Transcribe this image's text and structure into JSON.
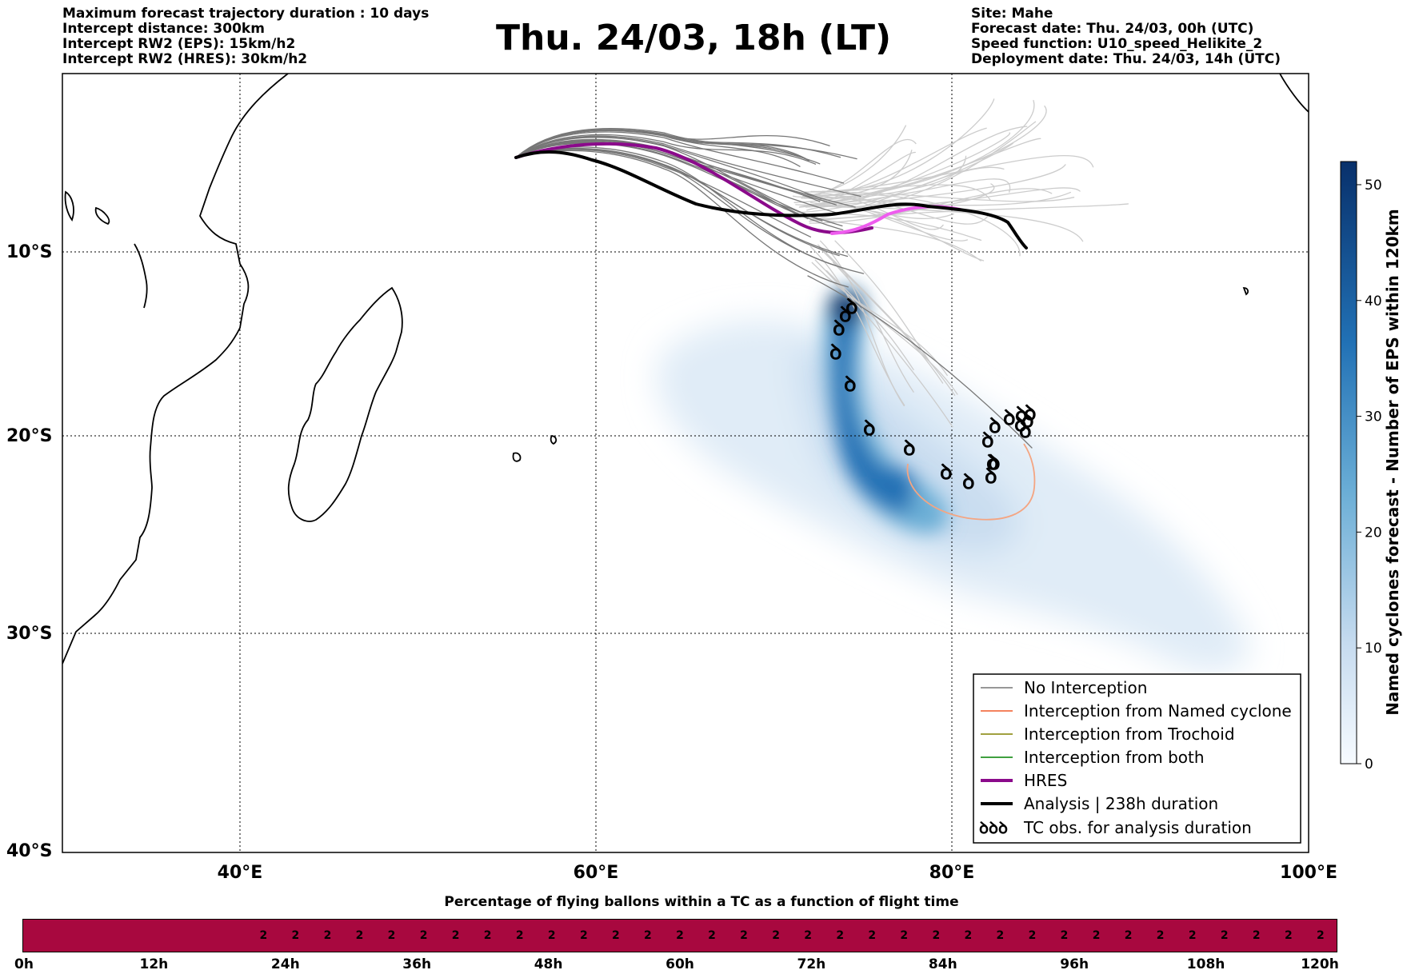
{
  "header_left": [
    "Maximum forecast trajectory duration : 10 days",
    "Intercept distance: 300km",
    "Intercept RW2 (EPS):  15km/h2",
    "Intercept RW2 (HRES): 30km/h2"
  ],
  "header_right": [
    "Site: Mahe",
    "Forecast date: Thu. 24/03, 00h (UTC)",
    "Speed function: U10_speed_Helikite_2",
    "Deployment date: Thu. 24/03, 14h (UTC)"
  ],
  "title": "Thu. 24/03, 18h (LT)",
  "map": {
    "lat_labels": [
      "10°S",
      "20°S",
      "30°S",
      "40°S"
    ],
    "lon_labels": [
      "40°E",
      "60°E",
      "80°E",
      "100°E"
    ],
    "extent": {
      "lon_min": 30,
      "lon_max": 100,
      "lat_top": -0.5,
      "lat_bottom": -40
    },
    "colors": {
      "land_outline": "#000000",
      "hres": "#8b0a8b",
      "hres_late": "#ee5cee",
      "analysis": "#000000",
      "eps_track": "#777777",
      "eps_track_late": "#cccccc",
      "named_cyclone": "#f08060",
      "density": "#08306b"
    }
  },
  "colorbar": {
    "label": "Named cyclones forecast - Number of EPS within 120km",
    "ticks": [
      "0",
      "10",
      "20",
      "30",
      "40",
      "50"
    ],
    "min": 0,
    "max": 52,
    "color_low": "#deebf7",
    "color_high": "#08306b"
  },
  "legend": [
    {
      "label": "No Interception",
      "color": "#777777"
    },
    {
      "label": "Interception from Named cyclone",
      "color": "#f05a28"
    },
    {
      "label": "Interception from Trochoid",
      "color": "#808000"
    },
    {
      "label": "Interception from both",
      "color": "#008000"
    },
    {
      "label": "HRES",
      "color": "#8b0a8b"
    },
    {
      "label": "Analysis | 238h duration",
      "color": "#000000"
    },
    {
      "label": "TC obs. for analysis duration",
      "color": "#000000",
      "symbol": "ꝺꝺꝺ"
    }
  ],
  "bottom_bar": {
    "title": "Percentage of flying ballons within a TC as a function of flight time",
    "tick_labels": [
      "0h",
      "12h",
      "24h",
      "36h",
      "48h",
      "60h",
      "72h",
      "84h",
      "96h",
      "108h",
      "120h"
    ],
    "empty_cells": 7,
    "cell_values": [
      "2",
      "2",
      "2",
      "2",
      "2",
      "2",
      "2",
      "2",
      "2",
      "2",
      "2",
      "2",
      "2",
      "2",
      "2",
      "2",
      "2",
      "2",
      "2",
      "2",
      "2",
      "2",
      "2",
      "2",
      "2",
      "2",
      "2",
      "2",
      "2",
      "2",
      "2",
      "2",
      "2",
      "2"
    ],
    "color": "#a8083f"
  }
}
